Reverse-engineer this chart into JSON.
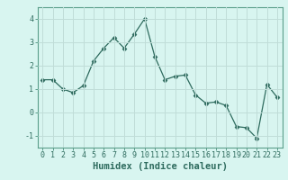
{
  "x": [
    0,
    1,
    2,
    3,
    4,
    5,
    6,
    7,
    8,
    9,
    10,
    11,
    12,
    13,
    14,
    15,
    16,
    17,
    18,
    19,
    20,
    21,
    22,
    23
  ],
  "y": [
    1.4,
    1.4,
    1.0,
    0.85,
    1.15,
    2.2,
    2.75,
    3.2,
    2.75,
    3.35,
    4.0,
    2.4,
    1.4,
    1.55,
    1.6,
    0.75,
    0.4,
    0.45,
    0.3,
    -0.6,
    -0.65,
    -1.1,
    1.2,
    0.65
  ],
  "line_color": "#2e6b5e",
  "marker": "D",
  "marker_size": 2.5,
  "background_color": "#d8f5f0",
  "grid_color": "#c0ddd8",
  "xlabel": "Humidex (Indice chaleur)",
  "ylim": [
    -1.5,
    4.5
  ],
  "xlim": [
    -0.5,
    23.5
  ],
  "yticks": [
    -1,
    0,
    1,
    2,
    3,
    4
  ],
  "xticks": [
    0,
    1,
    2,
    3,
    4,
    5,
    6,
    7,
    8,
    9,
    10,
    11,
    12,
    13,
    14,
    15,
    16,
    17,
    18,
    19,
    20,
    21,
    22,
    23
  ],
  "tick_color": "#2e6b5e",
  "label_fontsize": 7.5,
  "tick_fontsize": 6.0,
  "spine_color": "#5a9e8a"
}
